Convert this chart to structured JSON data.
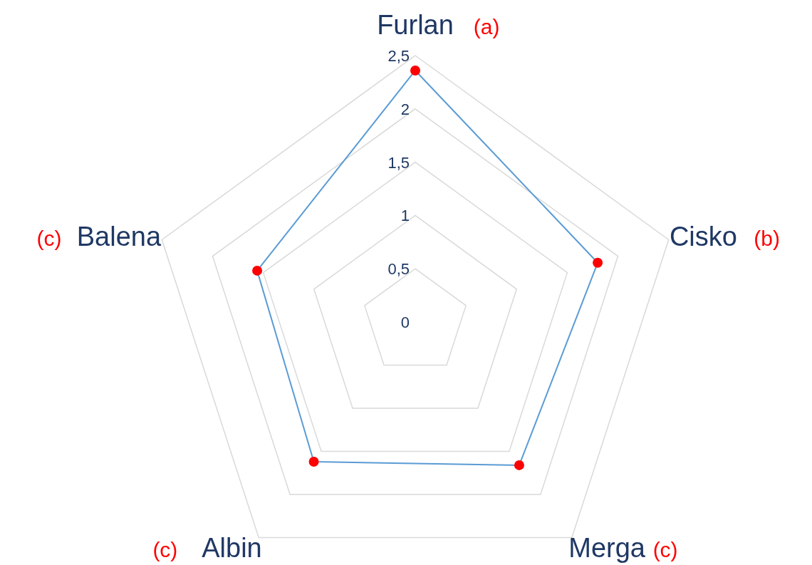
{
  "chart_data": {
    "type": "radar",
    "categories": [
      "Furlan",
      "Cisko",
      "Merga",
      "Albin",
      "Balena"
    ],
    "series": [
      {
        "color": "#5b9bd5",
        "values": [
          2.36,
          1.8,
          1.66,
          1.62,
          1.56
        ]
      }
    ],
    "ylim": [
      0,
      2.5
    ],
    "yticks": [
      0,
      {
        "value": 0.5,
        "label": "0,5"
      },
      1,
      {
        "value": 1.5,
        "label": "1,5"
      },
      2,
      {
        "value": 2.5,
        "label": "2,5"
      }
    ],
    "grid": true,
    "marker": "circle",
    "annotations": [
      {
        "text": "(a)",
        "x": "Furlan"
      },
      {
        "text": "(b)",
        "x": "Cisko"
      },
      {
        "text": "(c)",
        "x": "Merga"
      },
      {
        "text": "(c)",
        "x": "Albin"
      },
      {
        "text": "(c)",
        "x": "Balena"
      }
    ]
  }
}
